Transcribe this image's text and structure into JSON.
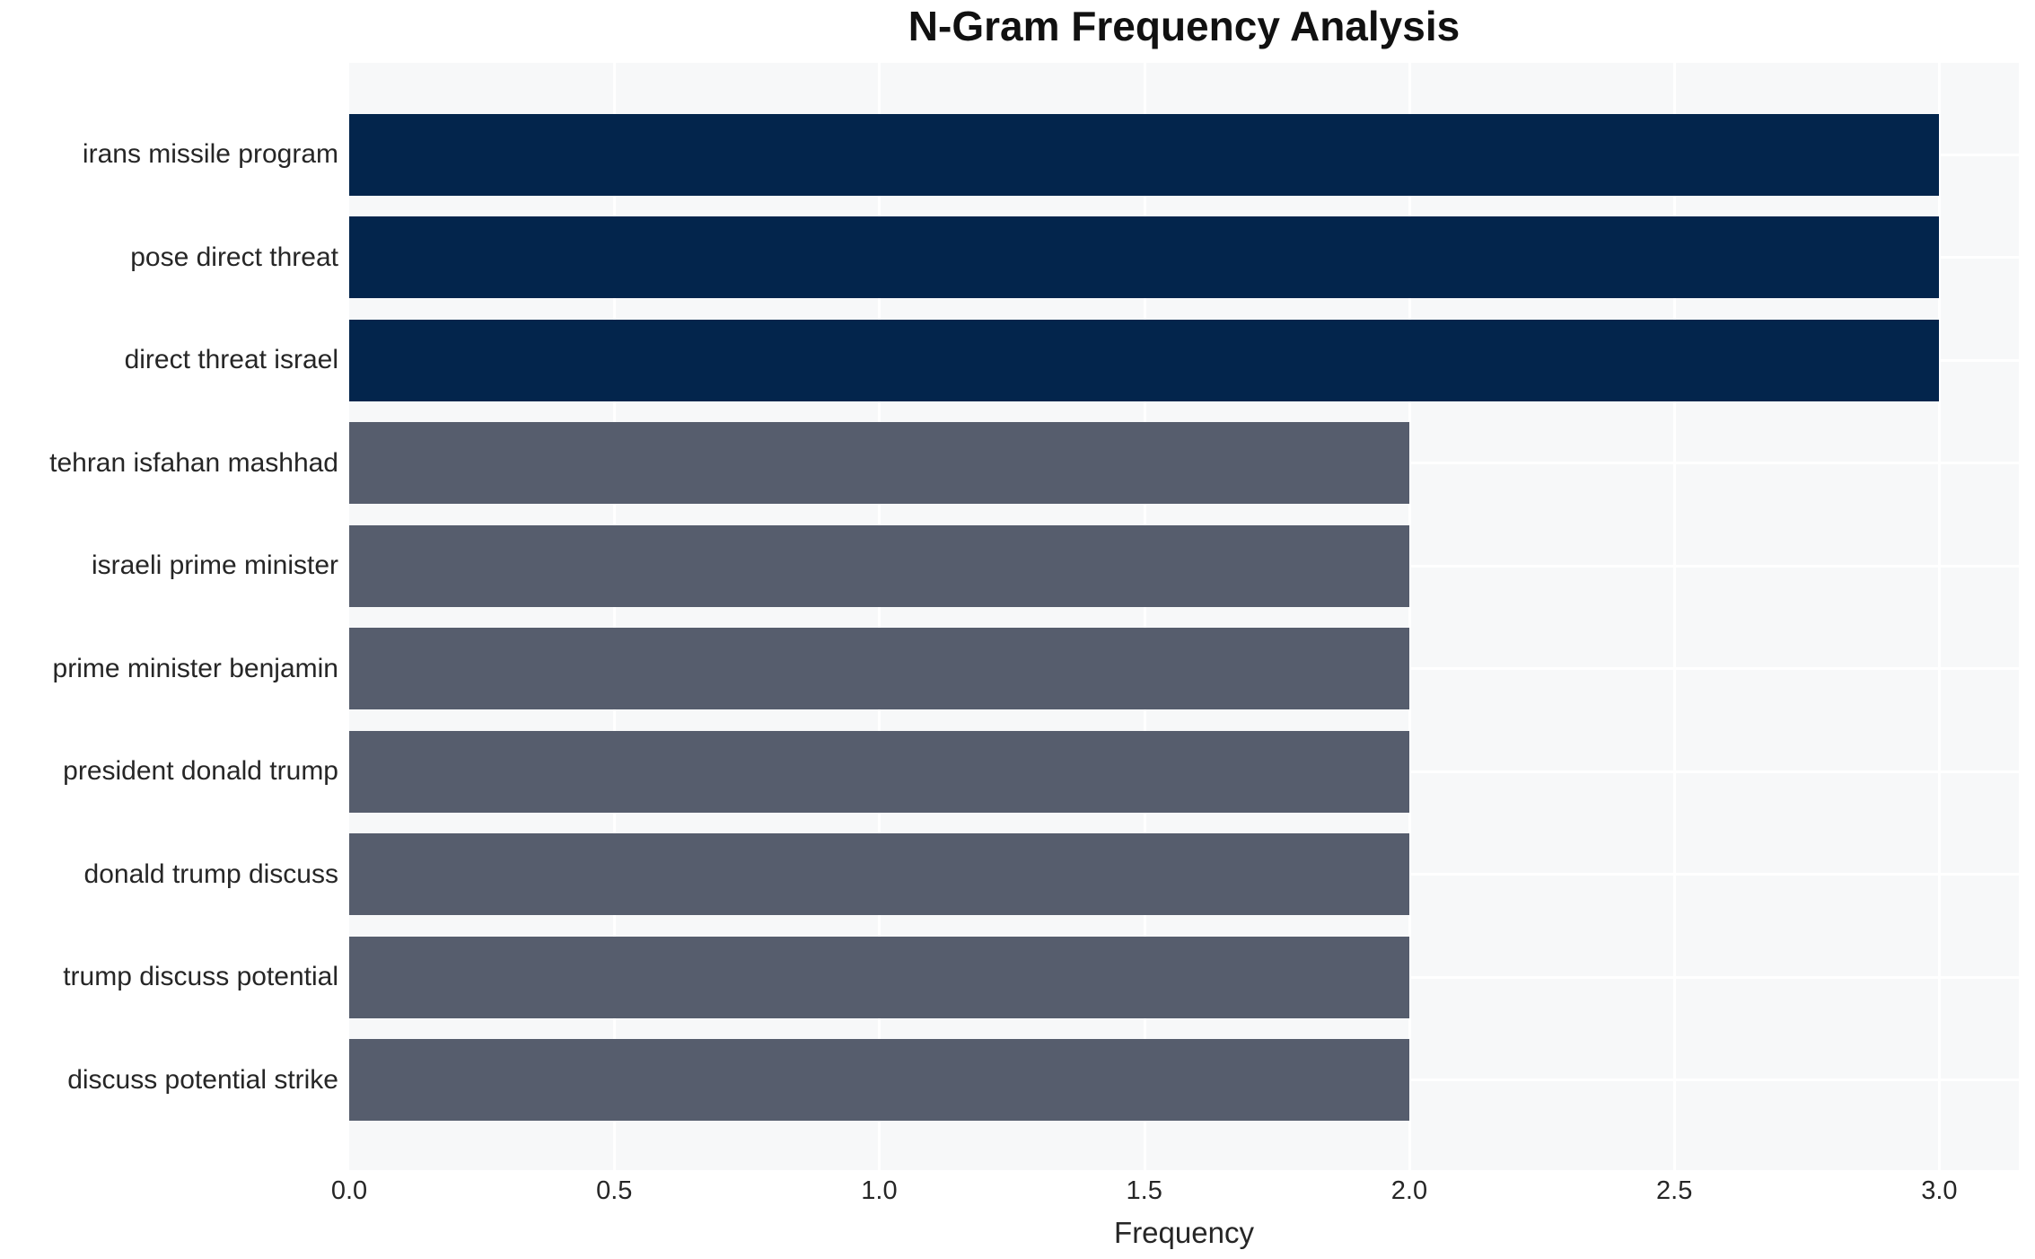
{
  "chart_data": {
    "type": "bar",
    "orientation": "horizontal",
    "title": "N-Gram Frequency Analysis",
    "xlabel": "Frequency",
    "ylabel": "",
    "categories": [
      "irans missile program",
      "pose direct threat",
      "direct threat israel",
      "tehran isfahan mashhad",
      "israeli prime minister",
      "prime minister benjamin",
      "president donald trump",
      "donald trump discuss",
      "trump discuss potential",
      "discuss potential strike"
    ],
    "values": [
      3,
      3,
      3,
      2,
      2,
      2,
      2,
      2,
      2,
      2
    ],
    "xlim": [
      0,
      3.15
    ],
    "xticks": [
      0.0,
      0.5,
      1.0,
      1.5,
      2.0,
      2.5,
      3.0
    ],
    "xtick_labels": [
      "0.0",
      "0.5",
      "1.0",
      "1.5",
      "2.0",
      "2.5",
      "3.0"
    ],
    "grid": true,
    "legend_position": "none",
    "bar_colors": [
      "#03254C",
      "#03254C",
      "#03254C",
      "#565D6D",
      "#565D6D",
      "#565D6D",
      "#565D6D",
      "#565D6D",
      "#565D6D",
      "#565D6D"
    ]
  },
  "style_colors": {
    "page_bg": "#FFFFFF",
    "plot_bg": "#F7F8F9",
    "gridline": "#FFFFFF",
    "tick_text": "#262626",
    "title_text": "#111111"
  }
}
